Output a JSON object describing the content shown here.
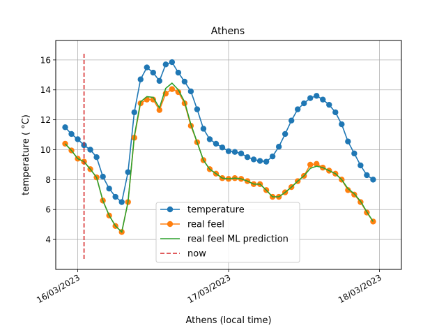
{
  "chart_data": {
    "type": "line",
    "title": "Athens",
    "xlabel": "Athens (local time)",
    "ylabel": "temperature ( °C)",
    "x_axis_type": "time-hours",
    "xlim": [
      -7,
      103
    ],
    "ylim": [
      2.0,
      17.3
    ],
    "grid": true,
    "legend_position": "bottom-center",
    "x_ticks": [
      {
        "value": 0,
        "label": "16/03/2023"
      },
      {
        "value": 48,
        "label": "17/03/2023"
      },
      {
        "value": 96,
        "label": "18/03/2023"
      }
    ],
    "y_ticks": [
      {
        "value": 4,
        "label": "4"
      },
      {
        "value": 6,
        "label": "6"
      },
      {
        "value": 8,
        "label": "8"
      },
      {
        "value": 10,
        "label": "10"
      },
      {
        "value": 12,
        "label": "12"
      },
      {
        "value": 14,
        "label": "14"
      },
      {
        "value": 16,
        "label": "16"
      }
    ],
    "x": [
      -4,
      -2,
      0,
      2,
      4,
      6,
      8,
      10,
      12,
      14,
      16,
      18,
      20,
      22,
      24,
      26,
      28,
      30,
      32,
      34,
      36,
      38,
      40,
      42,
      44,
      46,
      48,
      50,
      52,
      54,
      56,
      58,
      60,
      62,
      64,
      66,
      68,
      70,
      72,
      74,
      76,
      78,
      80,
      82,
      84,
      86,
      88,
      90,
      92,
      94
    ],
    "series": [
      {
        "name": "temperature",
        "color": "#1f77b4",
        "marker": "circle",
        "values": [
          11.5,
          11.05,
          10.7,
          10.3,
          10.0,
          9.5,
          8.2,
          7.4,
          6.85,
          6.5,
          8.5,
          12.5,
          14.7,
          15.5,
          15.15,
          14.6,
          15.7,
          15.85,
          15.15,
          14.55,
          13.9,
          12.7,
          11.4,
          10.7,
          10.4,
          10.15,
          9.9,
          9.85,
          9.75,
          9.5,
          9.35,
          9.25,
          9.2,
          9.55,
          10.2,
          11.05,
          11.95,
          12.7,
          13.1,
          13.45,
          13.6,
          13.35,
          13.0,
          12.5,
          11.7,
          10.55,
          9.75,
          8.95,
          8.3,
          8.0
        ]
      },
      {
        "name": "real feel",
        "color": "#ff7f0e",
        "marker": "circle",
        "values": [
          10.4,
          9.95,
          9.4,
          9.2,
          8.7,
          8.15,
          6.6,
          5.6,
          4.9,
          4.5,
          6.5,
          10.8,
          13.1,
          13.35,
          13.35,
          12.65,
          13.75,
          14.05,
          13.85,
          13.1,
          11.6,
          10.5,
          9.3,
          8.7,
          8.4,
          8.1,
          8.05,
          8.1,
          8.05,
          7.9,
          7.7,
          7.7,
          7.3,
          6.85,
          6.85,
          7.15,
          7.5,
          7.9,
          8.25,
          9.0,
          9.05,
          8.8,
          8.6,
          8.4,
          8.0,
          7.3,
          7.0,
          6.5,
          5.8,
          5.2
        ]
      },
      {
        "name": "real feel ML prediction",
        "color": "#2ca02c",
        "marker": "none",
        "values": [
          10.4,
          9.95,
          9.4,
          9.2,
          8.7,
          8.15,
          6.6,
          5.6,
          4.9,
          4.5,
          6.5,
          10.9,
          13.2,
          13.55,
          13.5,
          12.8,
          14.1,
          14.45,
          14.0,
          13.2,
          11.7,
          10.5,
          9.3,
          8.7,
          8.4,
          8.1,
          8.05,
          8.1,
          8.05,
          7.9,
          7.7,
          7.7,
          7.3,
          6.85,
          6.85,
          7.15,
          7.5,
          7.9,
          8.25,
          8.75,
          8.9,
          8.8,
          8.6,
          8.4,
          8.0,
          7.4,
          7.05,
          6.55,
          5.85,
          5.2
        ]
      }
    ],
    "vlines": [
      {
        "name": "now",
        "color": "#d62728",
        "x": 2,
        "y_range": [
          2.7,
          16.5
        ],
        "style": "dashed"
      }
    ]
  }
}
